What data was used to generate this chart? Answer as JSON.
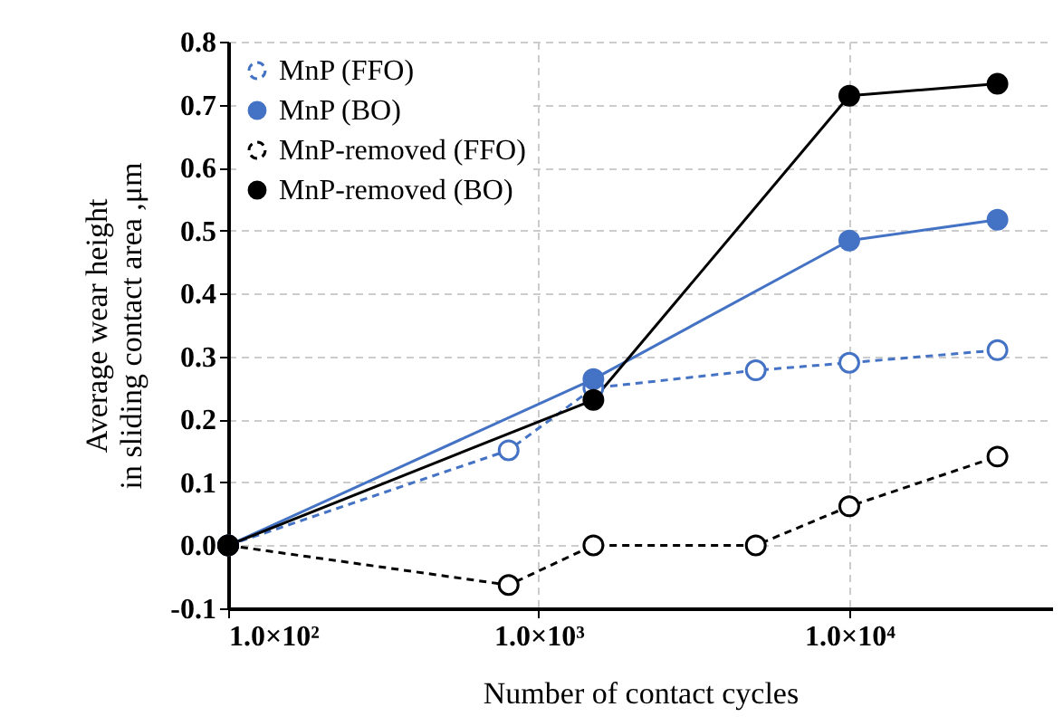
{
  "chart_data": {
    "type": "line",
    "xlabel": "Number of contact cycles",
    "ylabel": "Average wear height\nin sliding contact area ,μm",
    "log": "x",
    "xlim": [
      100,
      45000
    ],
    "xticks": [
      {
        "value": 100,
        "label": "1.0×10²"
      },
      {
        "value": 1000,
        "label": "1.0×10³"
      },
      {
        "value": 10000,
        "label": "1.0×10⁴"
      }
    ],
    "ylim": [
      -0.1,
      0.8
    ],
    "yticks": [
      -0.1,
      {
        "value": 0,
        "label": "0.0"
      },
      0.1,
      0.2,
      0.3,
      0.4,
      0.5,
      0.6,
      0.7,
      0.8
    ],
    "grid": true,
    "legend": "top left",
    "marker": "circle",
    "series": [
      {
        "name": "MnP (FFO)",
        "color": "#4472c4",
        "line_style": "dashed",
        "x": [
          100,
          800,
          1500,
          5000,
          10000,
          30000
        ],
        "values": [
          0,
          0.151,
          0.25,
          0.278,
          0.29,
          0.31
        ]
      },
      {
        "name": "MnP (BO)",
        "color": "#4472c4",
        "line_style": "solid",
        "x": [
          100,
          1500,
          10000,
          30000
        ],
        "values": [
          0,
          0.264,
          0.484,
          0.517
        ]
      },
      {
        "name": "MnP-removed (FFO)",
        "color": "#000000",
        "line_style": "dashed",
        "x": [
          100,
          800,
          1500,
          5000,
          10000,
          30000
        ],
        "values": [
          0,
          -0.063,
          0,
          0,
          0.062,
          0.141
        ]
      },
      {
        "name": "MnP-removed (BO)",
        "color": "#000000",
        "line_style": "solid",
        "x": [
          100,
          1500,
          10000,
          30000
        ],
        "values": [
          0,
          0.231,
          0.714,
          0.733
        ]
      }
    ]
  }
}
